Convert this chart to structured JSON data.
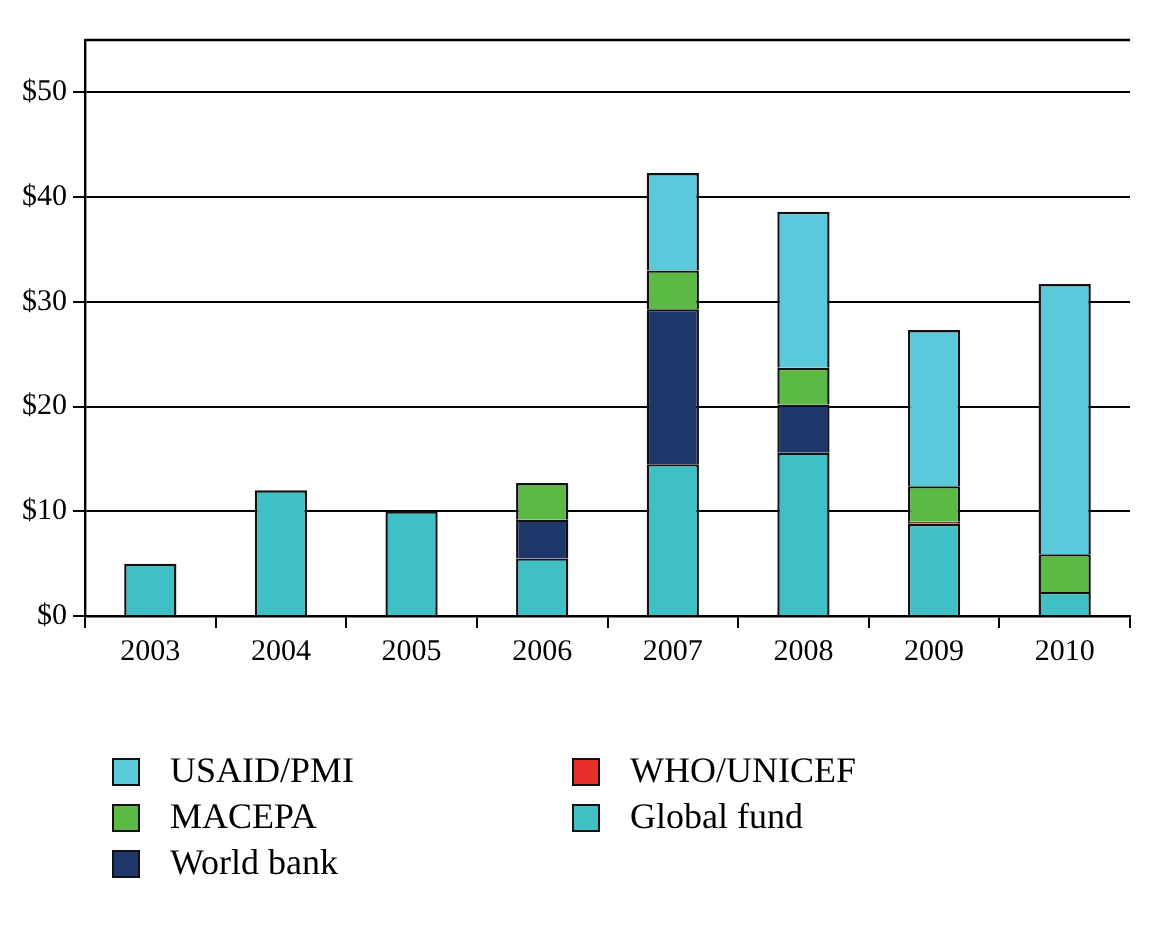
{
  "chart_data": {
    "type": "bar",
    "stacked": true,
    "categories": [
      "2003",
      "2004",
      "2005",
      "2006",
      "2007",
      "2008",
      "2009",
      "2010"
    ],
    "series": [
      {
        "name": "Global fund",
        "color": "#3fc0c5",
        "values": [
          5,
          12,
          10,
          5.5,
          14.5,
          15.6,
          8.8,
          2.3
        ]
      },
      {
        "name": "WHO/UNICEF",
        "color": "#e8302a",
        "values": [
          null,
          null,
          null,
          null,
          null,
          null,
          0.2,
          null
        ]
      },
      {
        "name": "World bank",
        "color": "#1f366b",
        "values": [
          null,
          null,
          null,
          3.7,
          14.8,
          4.6,
          null,
          null
        ]
      },
      {
        "name": "MACEPA",
        "color": "#5cb946",
        "values": [
          null,
          null,
          null,
          3.5,
          3.7,
          3.5,
          3.4,
          3.6
        ]
      },
      {
        "name": "USAID/PMI",
        "color": "#5bc8db",
        "values": [
          null,
          null,
          null,
          null,
          9.3,
          14.9,
          14.9,
          25.8
        ]
      }
    ],
    "ylim": [
      0,
      55
    ],
    "yticks": [
      {
        "value": 0,
        "label": "$0"
      },
      {
        "value": 10,
        "label": "$10"
      },
      {
        "value": 20,
        "label": "$20"
      },
      {
        "value": 30,
        "label": "$30"
      },
      {
        "value": 40,
        "label": "$40"
      },
      {
        "value": 50,
        "label": "$50"
      }
    ],
    "grid": "y",
    "legend": "bottom"
  }
}
